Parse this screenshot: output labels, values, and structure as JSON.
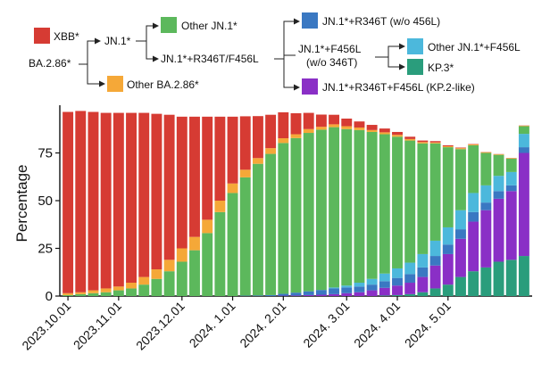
{
  "chart_data": {
    "type": "bar",
    "stacked": true,
    "ylabel": "Percentage",
    "xlabel": "",
    "ylim": [
      0,
      100
    ],
    "yticks": [
      0,
      25,
      50,
      75
    ],
    "x_tick_labels": [
      "2023.10.01",
      "2023.11.01",
      "2023.12.01",
      "2024. 1.01",
      "2024. 2.01",
      "2024. 3.01",
      "2024. 4.01",
      "2024. 5.01"
    ],
    "x_tick_bar_index": [
      0,
      4,
      9,
      13,
      17,
      22,
      26,
      30
    ],
    "grid": false,
    "series_order": [
      "KP.3*",
      "JN.1*+R346T+F456L (KP.2-like)",
      "JN.1*+R346T (w/o 456L)",
      "Other JN.1*+F456L",
      "Other JN.1*",
      "Other BA.2.86*",
      "XBB*"
    ],
    "series": [
      {
        "name": "KP.3*",
        "color": "#2a9d7c",
        "values": [
          0,
          0,
          0,
          0,
          0,
          0,
          0,
          0,
          0,
          0,
          0,
          0,
          0,
          0,
          0,
          0,
          0,
          0,
          0,
          0,
          0,
          0,
          0,
          0,
          0,
          0.3,
          0.5,
          1,
          2,
          4,
          6,
          10,
          13,
          15,
          18,
          19,
          21
        ]
      },
      {
        "name": "JN.1*+R346T+F456L (KP.2-like)",
        "color": "#8a2fc6",
        "values": [
          0,
          0,
          0,
          0,
          0,
          0,
          0,
          0,
          0,
          0,
          0,
          0,
          0,
          0,
          0,
          0,
          0,
          0.2,
          0.3,
          0.5,
          0.7,
          1,
          1.5,
          2,
          3,
          4,
          5,
          6,
          8,
          12,
          16,
          20,
          26,
          30,
          33,
          36,
          54
        ]
      },
      {
        "name": "JN.1*+R346T (w/o 456L)",
        "color": "#3a78c2",
        "values": [
          0,
          0,
          0,
          0,
          0,
          0,
          0,
          0,
          0,
          0,
          0,
          0,
          0,
          0,
          0.2,
          0.3,
          0.5,
          1,
          1.5,
          2,
          2.5,
          3,
          3,
          3,
          3,
          3.5,
          4,
          4.5,
          5,
          5,
          5,
          5,
          5,
          4,
          4,
          3,
          3
        ]
      },
      {
        "name": "Other JN.1*+F456L",
        "color": "#4cb8dc",
        "values": [
          0,
          0,
          0,
          0,
          0,
          0,
          0,
          0,
          0,
          0,
          0,
          0,
          0,
          0,
          0,
          0,
          0,
          0,
          0,
          0,
          0,
          0.5,
          1,
          2,
          3,
          4,
          5,
          6,
          7,
          8,
          9,
          10,
          10,
          9,
          8,
          7,
          7
        ]
      },
      {
        "name": "Other JN.1*",
        "color": "#5cb85c",
        "values": [
          0.5,
          1,
          1.5,
          2,
          3,
          4,
          6,
          9,
          13,
          18,
          24,
          33,
          44,
          54,
          62,
          69,
          74,
          79,
          81,
          83,
          84,
          84,
          82,
          80,
          77,
          73,
          69,
          64,
          58,
          51,
          42,
          32,
          25,
          17,
          11,
          7,
          4
        ]
      },
      {
        "name": "Other BA.2.86*",
        "color": "#f5a838",
        "values": [
          1,
          1,
          1.5,
          2,
          2,
          3,
          4,
          5,
          6,
          7,
          7,
          7,
          6,
          5,
          4,
          3,
          3,
          2.5,
          2,
          2,
          1.5,
          1.5,
          1.5,
          1.3,
          1,
          1,
          1,
          0.8,
          0.7,
          0.5,
          0.5,
          0.5,
          0.5,
          0.4,
          0.3,
          0.3,
          0.3
        ]
      },
      {
        "name": "XBB*",
        "color": "#d63b33",
        "values": [
          95,
          95,
          93.5,
          92,
          91,
          89,
          86,
          81.5,
          76,
          69,
          63,
          54,
          44,
          35,
          28,
          22,
          17.5,
          13.6,
          11,
          8.5,
          6.4,
          5,
          4,
          3.2,
          2.7,
          2,
          1.5,
          1.2,
          0.8,
          0.7,
          0.5,
          0.3,
          0.2,
          0.1,
          0.1,
          0.1,
          0.1
        ]
      }
    ]
  },
  "legend": {
    "xbb": "XBB*",
    "ba286": "BA.2.86*",
    "jn1": "JN.1*",
    "other_jn1": "Other JN.1*",
    "jn1_r346t_f456l": "JN.1*+R346T/F456L",
    "other_ba286": "Other BA.2.86*",
    "jn1_r346t_wo": "JN.1*+R346T (w/o 456L)",
    "jn1_f456l": "JN.1*+F456L",
    "wo_346t": "(w/o 346T)",
    "other_jn1_f456l": "Other JN.1*+F456L",
    "kp3": "KP.3*",
    "kp2_like": "JN.1*+R346T+F456L (KP.2-like)"
  },
  "colors": {
    "xbb": "#d63b33",
    "other_jn1": "#5cb85c",
    "other_ba286": "#f5a838",
    "jn1_r346t_wo": "#3a78c2",
    "other_jn1_f456l": "#4cb8dc",
    "kp3": "#2a9d7c",
    "kp2_like": "#8a2fc6"
  }
}
